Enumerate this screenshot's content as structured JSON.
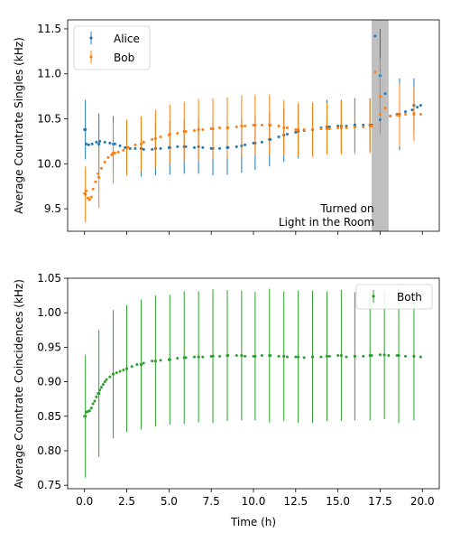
{
  "chart_data": [
    {
      "type": "scatter",
      "ylabel": "Average Countrate Singles (kHz)",
      "xlim": [
        -1.0,
        21.0
      ],
      "ylim": [
        9.25,
        11.6
      ],
      "yticks": [
        "9.5",
        "10.0",
        "10.5",
        "11.0",
        "11.5"
      ],
      "xticks": [
        0,
        2.5,
        5,
        7.5,
        10,
        12.5,
        15,
        17.5,
        20
      ],
      "legend_position": "top-left",
      "shaded_region": {
        "x": [
          17.0,
          18.0
        ],
        "color": "#bfbfbf"
      },
      "annotation": [
        "Turned on",
        "Light in the Room"
      ],
      "series": [
        {
          "name": "Alice",
          "color": "#1f77b4",
          "points": [
            [
              0.0,
              10.38
            ],
            [
              0.1,
              10.22
            ],
            [
              0.25,
              10.21
            ],
            [
              0.45,
              10.22
            ],
            [
              0.7,
              10.24
            ],
            [
              0.9,
              10.25
            ],
            [
              1.2,
              10.24
            ],
            [
              1.5,
              10.23
            ],
            [
              1.8,
              10.22
            ],
            [
              2.1,
              10.2
            ],
            [
              2.4,
              10.18
            ],
            [
              2.7,
              10.17
            ],
            [
              3.0,
              10.17
            ],
            [
              3.5,
              10.16
            ],
            [
              4.0,
              10.16
            ],
            [
              4.5,
              10.17
            ],
            [
              5.0,
              10.18
            ],
            [
              5.5,
              10.19
            ],
            [
              6.0,
              10.19
            ],
            [
              6.5,
              10.18
            ],
            [
              7.0,
              10.18
            ],
            [
              7.5,
              10.17
            ],
            [
              8.0,
              10.17
            ],
            [
              8.5,
              10.18
            ],
            [
              9.0,
              10.19
            ],
            [
              9.5,
              10.21
            ],
            [
              10.0,
              10.23
            ],
            [
              10.5,
              10.24
            ],
            [
              11.0,
              10.27
            ],
            [
              11.5,
              10.3
            ],
            [
              12.0,
              10.33
            ],
            [
              12.5,
              10.35
            ],
            [
              13.0,
              10.37
            ],
            [
              13.5,
              10.38
            ],
            [
              14.0,
              10.4
            ],
            [
              14.5,
              10.41
            ],
            [
              15.0,
              10.42
            ],
            [
              15.5,
              10.42
            ],
            [
              16.0,
              10.43
            ],
            [
              16.5,
              10.43
            ],
            [
              17.0,
              10.43
            ],
            [
              17.2,
              11.42
            ],
            [
              17.5,
              10.49
            ],
            [
              17.8,
              10.78
            ],
            [
              18.1,
              10.53
            ],
            [
              18.5,
              10.55
            ],
            [
              19.0,
              10.58
            ],
            [
              19.4,
              10.6
            ],
            [
              19.7,
              10.63
            ],
            [
              19.9,
              10.65
            ]
          ],
          "errorbars": [
            [
              0.05,
              10.38,
              0.33
            ],
            [
              0.85,
              10.22,
              0.34
            ],
            [
              1.7,
              10.22,
              0.31
            ],
            [
              2.5,
              10.18,
              0.31
            ],
            [
              3.35,
              10.17,
              0.31
            ],
            [
              4.2,
              10.17,
              0.3
            ],
            [
              5.05,
              10.18,
              0.3
            ],
            [
              5.9,
              10.19,
              0.3
            ],
            [
              6.75,
              10.19,
              0.3
            ],
            [
              7.6,
              10.17,
              0.3
            ],
            [
              8.45,
              10.18,
              0.3
            ],
            [
              9.3,
              10.2,
              0.3
            ],
            [
              10.1,
              10.23,
              0.3
            ],
            [
              10.95,
              10.27,
              0.3
            ],
            [
              11.8,
              10.32,
              0.3
            ],
            [
              12.65,
              10.36,
              0.3
            ],
            [
              13.5,
              10.38,
              0.3
            ],
            [
              14.35,
              10.41,
              0.3
            ],
            [
              15.2,
              10.42,
              0.29
            ],
            [
              16.0,
              10.43,
              0.3
            ],
            [
              16.9,
              10.43,
              0.3
            ],
            [
              17.5,
              10.98,
              0.52
            ],
            [
              18.65,
              10.55,
              0.4
            ],
            [
              19.5,
              10.65,
              0.3
            ]
          ]
        },
        {
          "name": "Bob",
          "color": "#ff7f0e",
          "points": [
            [
              0.0,
              9.67
            ],
            [
              0.1,
              9.7
            ],
            [
              0.2,
              9.62
            ],
            [
              0.3,
              9.6
            ],
            [
              0.4,
              9.63
            ],
            [
              0.5,
              9.72
            ],
            [
              0.65,
              9.8
            ],
            [
              0.8,
              9.89
            ],
            [
              1.0,
              9.95
            ],
            [
              1.2,
              10.02
            ],
            [
              1.4,
              10.07
            ],
            [
              1.6,
              10.1
            ],
            [
              1.8,
              10.12
            ],
            [
              2.0,
              10.13
            ],
            [
              2.3,
              10.15
            ],
            [
              2.6,
              10.18
            ],
            [
              3.0,
              10.21
            ],
            [
              3.5,
              10.24
            ],
            [
              4.0,
              10.27
            ],
            [
              4.5,
              10.3
            ],
            [
              5.0,
              10.32
            ],
            [
              5.5,
              10.34
            ],
            [
              6.0,
              10.36
            ],
            [
              6.5,
              10.37
            ],
            [
              7.0,
              10.38
            ],
            [
              7.5,
              10.39
            ],
            [
              8.0,
              10.4
            ],
            [
              8.5,
              10.4
            ],
            [
              9.0,
              10.41
            ],
            [
              9.5,
              10.42
            ],
            [
              10.0,
              10.43
            ],
            [
              10.5,
              10.43
            ],
            [
              11.0,
              10.43
            ],
            [
              11.5,
              10.42
            ],
            [
              12.0,
              10.4
            ],
            [
              12.5,
              10.38
            ],
            [
              13.0,
              10.38
            ],
            [
              13.5,
              10.38
            ],
            [
              14.0,
              10.39
            ],
            [
              14.5,
              10.39
            ],
            [
              15.0,
              10.4
            ],
            [
              15.5,
              10.4
            ],
            [
              16.0,
              10.41
            ],
            [
              16.5,
              10.41
            ],
            [
              17.0,
              10.42
            ],
            [
              17.2,
              11.02
            ],
            [
              17.5,
              10.55
            ],
            [
              17.8,
              10.62
            ],
            [
              18.1,
              10.53
            ],
            [
              18.5,
              10.54
            ],
            [
              19.0,
              10.55
            ],
            [
              19.5,
              10.56
            ],
            [
              19.9,
              10.55
            ]
          ],
          "errorbars": [
            [
              0.05,
              9.66,
              0.31
            ],
            [
              0.85,
              9.85,
              0.34
            ],
            [
              1.7,
              10.12,
              0.34
            ],
            [
              2.5,
              10.18,
              0.31
            ],
            [
              3.35,
              10.22,
              0.31
            ],
            [
              4.2,
              10.28,
              0.32
            ],
            [
              5.05,
              10.33,
              0.33
            ],
            [
              5.9,
              10.36,
              0.33
            ],
            [
              6.75,
              10.38,
              0.34
            ],
            [
              7.6,
              10.39,
              0.34
            ],
            [
              8.45,
              10.4,
              0.34
            ],
            [
              9.3,
              10.42,
              0.34
            ],
            [
              10.1,
              10.43,
              0.34
            ],
            [
              10.95,
              10.43,
              0.34
            ],
            [
              11.8,
              10.4,
              0.31
            ],
            [
              12.65,
              10.38,
              0.3
            ],
            [
              13.5,
              10.38,
              0.3
            ],
            [
              14.35,
              10.39,
              0.29
            ],
            [
              15.2,
              10.4,
              0.3
            ],
            [
              16.0,
              10.41,
              0.3
            ],
            [
              16.9,
              10.42,
              0.3
            ],
            [
              17.5,
              10.75,
              0.42
            ],
            [
              18.65,
              10.54,
              0.35
            ],
            [
              19.5,
              10.55,
              0.3
            ]
          ]
        }
      ]
    },
    {
      "type": "scatter",
      "xlabel": "Time (h)",
      "ylabel": "Average Countrate Coincidences (kHz)",
      "xlim": [
        -1.0,
        21.0
      ],
      "ylim": [
        0.745,
        1.05
      ],
      "yticks": [
        "0.75",
        "0.80",
        "0.85",
        "0.90",
        "0.95",
        "1.00",
        "1.05"
      ],
      "xticks": [
        "0.0",
        "2.5",
        "5.0",
        "7.5",
        "10.0",
        "12.5",
        "15.0",
        "17.5",
        "20.0"
      ],
      "legend_position": "top-right",
      "series": [
        {
          "name": "Both",
          "color": "#2ca02c",
          "points": [
            [
              0.0,
              0.85
            ],
            [
              0.1,
              0.856
            ],
            [
              0.2,
              0.857
            ],
            [
              0.3,
              0.858
            ],
            [
              0.4,
              0.862
            ],
            [
              0.5,
              0.868
            ],
            [
              0.6,
              0.872
            ],
            [
              0.7,
              0.878
            ],
            [
              0.8,
              0.883
            ],
            [
              0.9,
              0.888
            ],
            [
              1.0,
              0.892
            ],
            [
              1.1,
              0.896
            ],
            [
              1.2,
              0.9
            ],
            [
              1.3,
              0.903
            ],
            [
              1.5,
              0.907
            ],
            [
              1.7,
              0.911
            ],
            [
              1.9,
              0.913
            ],
            [
              2.1,
              0.915
            ],
            [
              2.3,
              0.917
            ],
            [
              2.5,
              0.919
            ],
            [
              2.8,
              0.922
            ],
            [
              3.1,
              0.925
            ],
            [
              3.5,
              0.927
            ],
            [
              4.0,
              0.93
            ],
            [
              4.5,
              0.931
            ],
            [
              5.0,
              0.932
            ],
            [
              5.5,
              0.934
            ],
            [
              6.0,
              0.935
            ],
            [
              6.5,
              0.936
            ],
            [
              7.0,
              0.936
            ],
            [
              7.5,
              0.937
            ],
            [
              8.0,
              0.937
            ],
            [
              8.5,
              0.938
            ],
            [
              9.0,
              0.938
            ],
            [
              9.5,
              0.937
            ],
            [
              10.0,
              0.937
            ],
            [
              10.5,
              0.938
            ],
            [
              11.0,
              0.938
            ],
            [
              11.5,
              0.937
            ],
            [
              12.0,
              0.936
            ],
            [
              12.5,
              0.936
            ],
            [
              13.0,
              0.935
            ],
            [
              13.5,
              0.936
            ],
            [
              14.0,
              0.936
            ],
            [
              14.5,
              0.937
            ],
            [
              15.0,
              0.938
            ],
            [
              15.5,
              0.936
            ],
            [
              16.0,
              0.937
            ],
            [
              16.5,
              0.937
            ],
            [
              17.0,
              0.938
            ],
            [
              17.5,
              0.939
            ],
            [
              18.0,
              0.938
            ],
            [
              18.5,
              0.938
            ],
            [
              19.0,
              0.937
            ],
            [
              19.5,
              0.937
            ],
            [
              19.9,
              0.936
            ]
          ],
          "errorbars": [
            [
              0.05,
              0.85,
              0.089
            ],
            [
              0.85,
              0.883,
              0.092
            ],
            [
              1.7,
              0.911,
              0.093
            ],
            [
              2.5,
              0.919,
              0.092
            ],
            [
              3.35,
              0.925,
              0.094
            ],
            [
              4.2,
              0.93,
              0.095
            ],
            [
              5.05,
              0.932,
              0.094
            ],
            [
              5.9,
              0.935,
              0.096
            ],
            [
              6.75,
              0.936,
              0.095
            ],
            [
              7.6,
              0.937,
              0.097
            ],
            [
              8.45,
              0.938,
              0.095
            ],
            [
              9.3,
              0.938,
              0.094
            ],
            [
              10.1,
              0.937,
              0.093
            ],
            [
              10.95,
              0.938,
              0.097
            ],
            [
              11.8,
              0.937,
              0.094
            ],
            [
              12.65,
              0.936,
              0.096
            ],
            [
              13.5,
              0.936,
              0.096
            ],
            [
              14.35,
              0.937,
              0.094
            ],
            [
              15.2,
              0.938,
              0.095
            ],
            [
              16.0,
              0.937,
              0.093
            ],
            [
              16.9,
              0.938,
              0.094
            ],
            [
              17.75,
              0.939,
              0.093
            ],
            [
              18.6,
              0.938,
              0.098
            ],
            [
              19.5,
              0.937,
              0.093
            ]
          ]
        }
      ]
    }
  ]
}
